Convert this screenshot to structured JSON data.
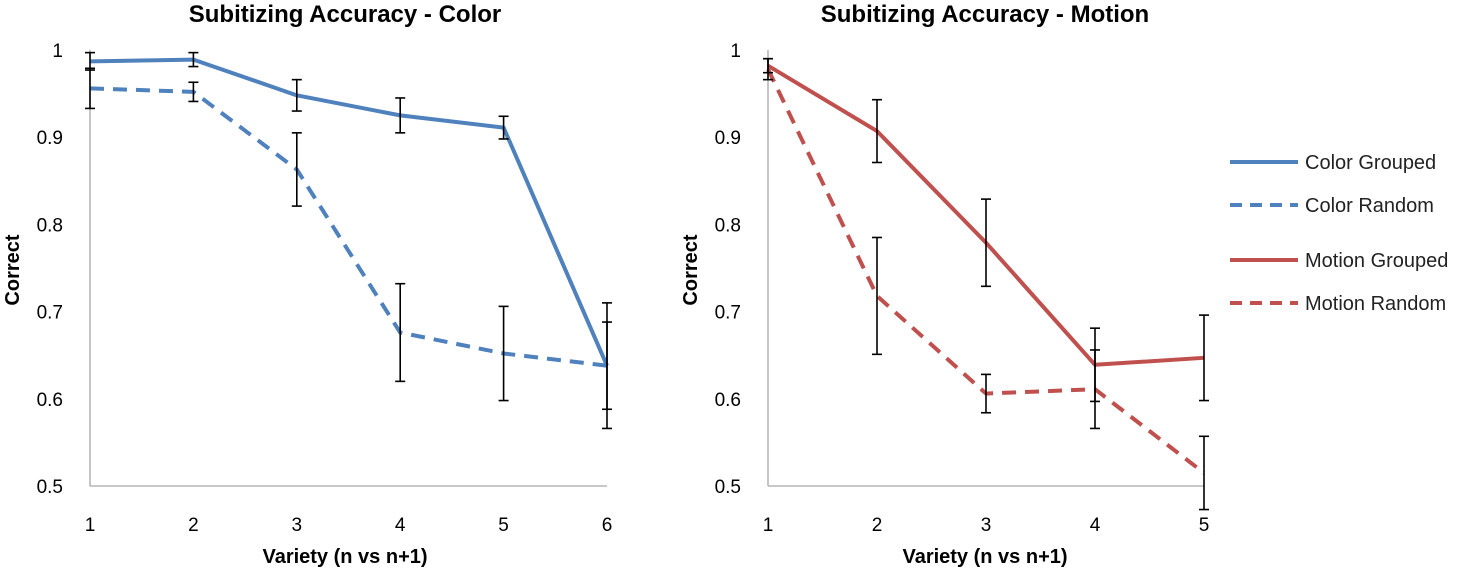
{
  "chart_data": [
    {
      "type": "line",
      "title": "Subitizing Accuracy - Color",
      "xlabel": "Variety (n vs n+1)",
      "ylabel": "Correct",
      "x": [
        1,
        2,
        3,
        4,
        5,
        6
      ],
      "xticks": [
        "1",
        "2",
        "3",
        "4",
        "5",
        "6"
      ],
      "ylim": [
        0.5,
        1
      ],
      "yticks": [
        "0.5",
        "0.6",
        "0.7",
        "0.8",
        "0.9",
        "1"
      ],
      "grid": false,
      "series": [
        {
          "name": "Color Grouped",
          "color": "#4f81bd",
          "style": "solid",
          "values": [
            0.987,
            0.989,
            0.948,
            0.925,
            0.911,
            0.638
          ],
          "error": [
            0.01,
            0.008,
            0.018,
            0.02,
            0.013,
            0.05
          ]
        },
        {
          "name": "Color Random",
          "color": "#4f81bd",
          "style": "dashed",
          "values": [
            0.956,
            0.952,
            0.863,
            0.676,
            0.652,
            0.638
          ],
          "error": [
            0.023,
            0.011,
            0.042,
            0.056,
            0.054,
            0.072
          ]
        }
      ]
    },
    {
      "type": "line",
      "title": "Subitizing Accuracy - Motion",
      "xlabel": "Variety (n vs n+1)",
      "ylabel": "Correct",
      "x": [
        1,
        2,
        3,
        4,
        5
      ],
      "xticks": [
        "1",
        "2",
        "3",
        "4",
        "5"
      ],
      "ylim": [
        0.5,
        1
      ],
      "yticks": [
        "0.5",
        "0.6",
        "0.7",
        "0.8",
        "0.9",
        "1"
      ],
      "grid": false,
      "series": [
        {
          "name": "Motion Grouped",
          "color": "#c0504d",
          "style": "solid",
          "values": [
            0.982,
            0.907,
            0.779,
            0.639,
            0.647
          ],
          "error": [
            0.008,
            0.036,
            0.05,
            0.042,
            0.049
          ]
        },
        {
          "name": "Motion Random",
          "color": "#c0504d",
          "style": "dashed",
          "values": [
            0.978,
            0.718,
            0.606,
            0.611,
            0.515
          ],
          "error": [
            0.012,
            0.067,
            0.022,
            0.045,
            0.042
          ]
        }
      ]
    }
  ],
  "legend": {
    "placement": "right",
    "entries": [
      "Color Grouped",
      "Color Random",
      "Motion Grouped",
      "Motion Random"
    ]
  }
}
